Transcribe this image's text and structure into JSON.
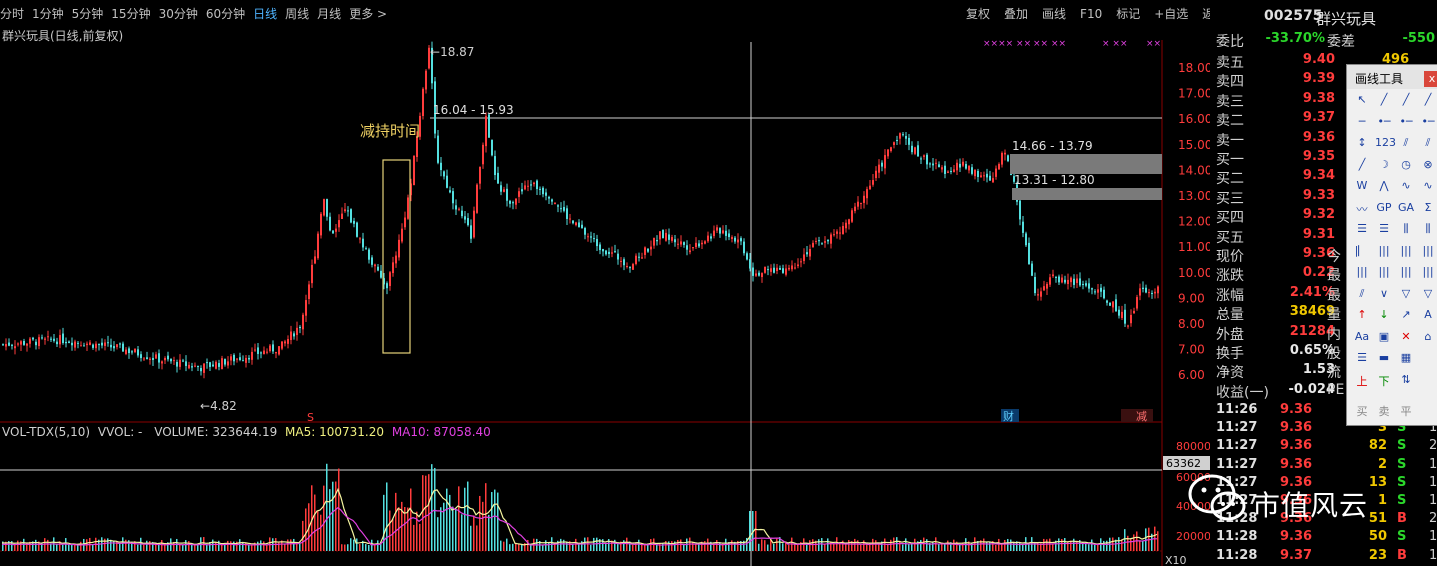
{
  "toolbar": {
    "periods": [
      "分时",
      "1分钟",
      "5分钟",
      "15分钟",
      "30分钟",
      "60分钟",
      "日线",
      "周线",
      "月线",
      "更多 >"
    ],
    "active_period": "日线",
    "right_actions": [
      "复权",
      "叠加",
      "画线",
      "F10",
      "标记",
      "+自选",
      "返回"
    ]
  },
  "chart_title": "群兴玩具(日线,前复权)",
  "annotation": {
    "reduce_time": "减持时间",
    "high_label": "18.87",
    "low_label": "4.82",
    "range1": "16.04 - 15.93",
    "range2": "14.66 - 13.79",
    "range3": "13.31 - 12.80",
    "marker_s": "S",
    "marker_cai": "财",
    "marker_jian": "减"
  },
  "price_axis": [
    "18.00",
    "17.00",
    "16.00",
    "15.00",
    "14.00",
    "13.00",
    "12.00",
    "11.00",
    "10.00",
    "9.00",
    "8.00",
    "7.00",
    "6.00"
  ],
  "volume_header": {
    "name": "VOL-TDX(5,10)",
    "vvol": "VVOL: -",
    "volume": "VOLUME: 323644.19",
    "ma5": "MA5: 100731.20",
    "ma10": "MA10: 87058.40"
  },
  "volume_axis": [
    "80000",
    "60000",
    "40000",
    "20000"
  ],
  "volume_unit": "X10",
  "crosshair_value": "63362",
  "quote": {
    "code": "002575",
    "name": "群兴玩具",
    "wei_bi_label": "委比",
    "wei_bi": "-33.70%",
    "wei_cha_label": "委差",
    "wei_cha": "-550",
    "asks": [
      {
        "label": "卖五",
        "price": "9.40",
        "vol": "496"
      },
      {
        "label": "卖四",
        "price": "9.39",
        "vol": ""
      },
      {
        "label": "卖三",
        "price": "9.38",
        "vol": ""
      },
      {
        "label": "卖二",
        "price": "9.37",
        "vol": ""
      },
      {
        "label": "卖一",
        "price": "9.36",
        "vol": ""
      }
    ],
    "bids": [
      {
        "label": "买一",
        "price": "9.35"
      },
      {
        "label": "买二",
        "price": "9.34"
      },
      {
        "label": "买三",
        "price": "9.33"
      },
      {
        "label": "买四",
        "price": "9.32"
      },
      {
        "label": "买五",
        "price": "9.31"
      }
    ],
    "stats": [
      {
        "label": "现价",
        "value": "9.36",
        "color": "red",
        "side": "今"
      },
      {
        "label": "涨跌",
        "value": "0.22",
        "color": "red",
        "side": "最"
      },
      {
        "label": "涨幅",
        "value": "2.41%",
        "color": "red",
        "side": "最"
      },
      {
        "label": "总量",
        "value": "38469",
        "color": "yellow",
        "side": "量"
      },
      {
        "label": "外盘",
        "value": "21284",
        "color": "red",
        "side": "内"
      },
      {
        "label": "换手",
        "value": "0.65%",
        "color": "white",
        "side": "股"
      },
      {
        "label": "净资",
        "value": "1.53",
        "color": "white",
        "side": "流"
      },
      {
        "label": "收益(一)",
        "value": "-0.024",
        "color": "white",
        "side": "PE"
      }
    ],
    "ticks": [
      {
        "time": "11:26",
        "price": "9.36",
        "vol": "",
        "bs": "",
        "n": ""
      },
      {
        "time": "11:27",
        "price": "9.36",
        "vol": "3",
        "bs": "S",
        "n": "1"
      },
      {
        "time": "11:27",
        "price": "9.36",
        "vol": "82",
        "bs": "S",
        "n": "2"
      },
      {
        "time": "11:27",
        "price": "9.36",
        "vol": "2",
        "bs": "S",
        "n": "1"
      },
      {
        "time": "11:27",
        "price": "9.36",
        "vol": "13",
        "bs": "S",
        "n": "1"
      },
      {
        "time": "11:27",
        "price": "9.36",
        "vol": "1",
        "bs": "S",
        "n": "1"
      },
      {
        "time": "11:28",
        "price": "9.36",
        "vol": "51",
        "bs": "B",
        "n": "2"
      },
      {
        "time": "11:28",
        "price": "9.36",
        "vol": "50",
        "bs": "S",
        "n": "1"
      },
      {
        "time": "11:28",
        "price": "9.37",
        "vol": "23",
        "bs": "B",
        "n": "1"
      }
    ]
  },
  "tools": {
    "title": "画线工具",
    "close": "x",
    "bottom": [
      "买",
      "卖",
      "平"
    ]
  },
  "watermark": "市值风云"
}
